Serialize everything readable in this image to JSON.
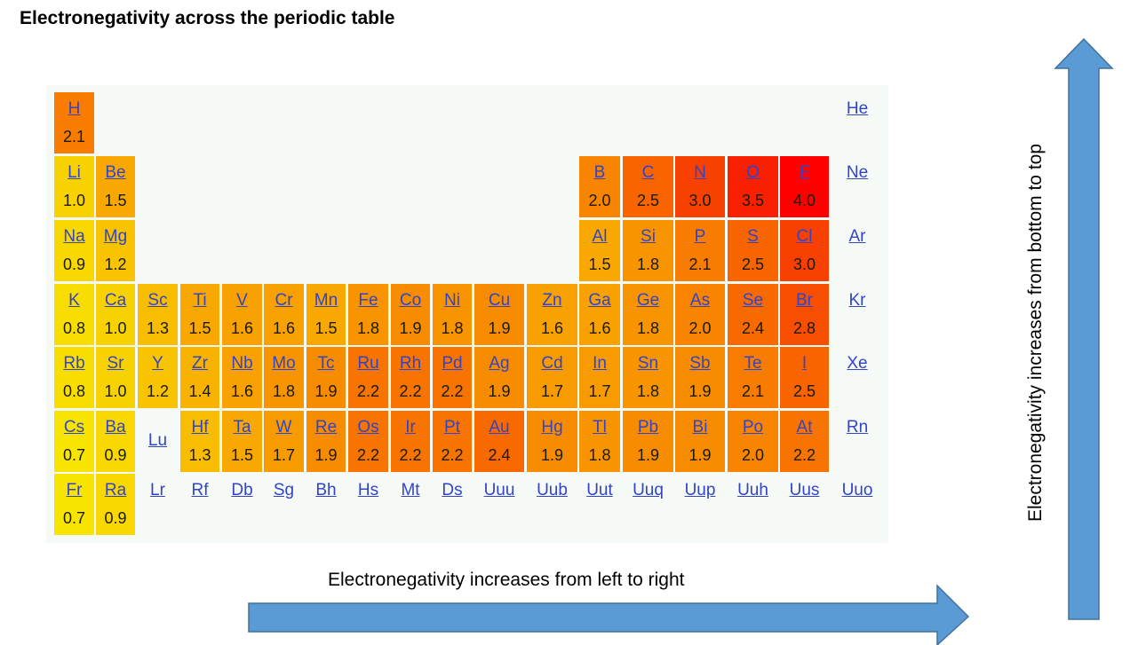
{
  "title": "Electronegativity across the periodic table",
  "horizontal_label": "Electronegativity increases from left to right",
  "vertical_label": "Electronegativity increases from bottom to top",
  "colors": {
    "arrow_fill": "#5b9bd5",
    "arrow_stroke": "#41719c",
    "link": "#3344c4",
    "table_bg": "#f5faf7",
    "low": "#f7e400",
    "high": "#ff0000"
  },
  "rows": [
    [
      [
        "H",
        2.1
      ],
      null,
      null,
      null,
      null,
      null,
      null,
      null,
      null,
      null,
      null,
      null,
      null,
      null,
      null,
      null,
      null,
      [
        "He",
        null
      ]
    ],
    [
      [
        "Li",
        1.0
      ],
      [
        "Be",
        1.5
      ],
      null,
      null,
      null,
      null,
      null,
      null,
      null,
      null,
      null,
      null,
      [
        "B",
        2.0
      ],
      [
        "C",
        2.5
      ],
      [
        "N",
        3.0
      ],
      [
        "O",
        3.5
      ],
      [
        "F",
        4.0
      ],
      [
        "Ne",
        null
      ]
    ],
    [
      [
        "Na",
        0.9
      ],
      [
        "Mg",
        1.2
      ],
      null,
      null,
      null,
      null,
      null,
      null,
      null,
      null,
      null,
      null,
      [
        "Al",
        1.5
      ],
      [
        "Si",
        1.8
      ],
      [
        "P",
        2.1
      ],
      [
        "S",
        2.5
      ],
      [
        "Cl",
        3.0
      ],
      [
        "Ar",
        null
      ]
    ],
    [
      [
        "K",
        0.8
      ],
      [
        "Ca",
        1.0
      ],
      [
        "Sc",
        1.3
      ],
      [
        "Ti",
        1.5
      ],
      [
        "V",
        1.6
      ],
      [
        "Cr",
        1.6
      ],
      [
        "Mn",
        1.5
      ],
      [
        "Fe",
        1.8
      ],
      [
        "Co",
        1.9
      ],
      [
        "Ni",
        1.8
      ],
      [
        "Cu",
        1.9
      ],
      [
        "Zn",
        1.6
      ],
      [
        "Ga",
        1.6
      ],
      [
        "Ge",
        1.8
      ],
      [
        "As",
        2.0
      ],
      [
        "Se",
        2.4
      ],
      [
        "Br",
        2.8
      ],
      [
        "Kr",
        null
      ]
    ],
    [
      [
        "Rb",
        0.8
      ],
      [
        "Sr",
        1.0
      ],
      [
        "Y",
        1.2
      ],
      [
        "Zr",
        1.4
      ],
      [
        "Nb",
        1.6
      ],
      [
        "Mo",
        1.8
      ],
      [
        "Tc",
        1.9
      ],
      [
        "Ru",
        2.2
      ],
      [
        "Rh",
        2.2
      ],
      [
        "Pd",
        2.2
      ],
      [
        "Ag",
        1.9
      ],
      [
        "Cd",
        1.7
      ],
      [
        "In",
        1.7
      ],
      [
        "Sn",
        1.8
      ],
      [
        "Sb",
        1.9
      ],
      [
        "Te",
        2.1
      ],
      [
        "I",
        2.5
      ],
      [
        "Xe",
        null
      ]
    ],
    [
      [
        "Cs",
        0.7
      ],
      [
        "Ba",
        0.9
      ],
      [
        "Lu",
        null
      ],
      [
        "Hf",
        1.3
      ],
      [
        "Ta",
        1.5
      ],
      [
        "W",
        1.7
      ],
      [
        "Re",
        1.9
      ],
      [
        "Os",
        2.2
      ],
      [
        "Ir",
        2.2
      ],
      [
        "Pt",
        2.2
      ],
      [
        "Au",
        2.4
      ],
      [
        "Hg",
        1.9
      ],
      [
        "Tl",
        1.8
      ],
      [
        "Pb",
        1.9
      ],
      [
        "Bi",
        1.9
      ],
      [
        "Po",
        2.0
      ],
      [
        "At",
        2.2
      ],
      [
        "Rn",
        null
      ]
    ],
    [
      [
        "Fr",
        0.7
      ],
      [
        "Ra",
        0.9
      ],
      [
        "Lr",
        null
      ],
      [
        "Rf",
        null
      ],
      [
        "Db",
        null
      ],
      [
        "Sg",
        null
      ],
      [
        "Bh",
        null
      ],
      [
        "Hs",
        null
      ],
      [
        "Mt",
        null
      ],
      [
        "Ds",
        null
      ],
      [
        "Uuu",
        null
      ],
      [
        "Uub",
        null
      ],
      [
        "Uut",
        null
      ],
      [
        "Uuq",
        null
      ],
      [
        "Uup",
        null
      ],
      [
        "Uuh",
        null
      ],
      [
        "Uus",
        null
      ],
      [
        "Uuo",
        null
      ]
    ]
  ]
}
